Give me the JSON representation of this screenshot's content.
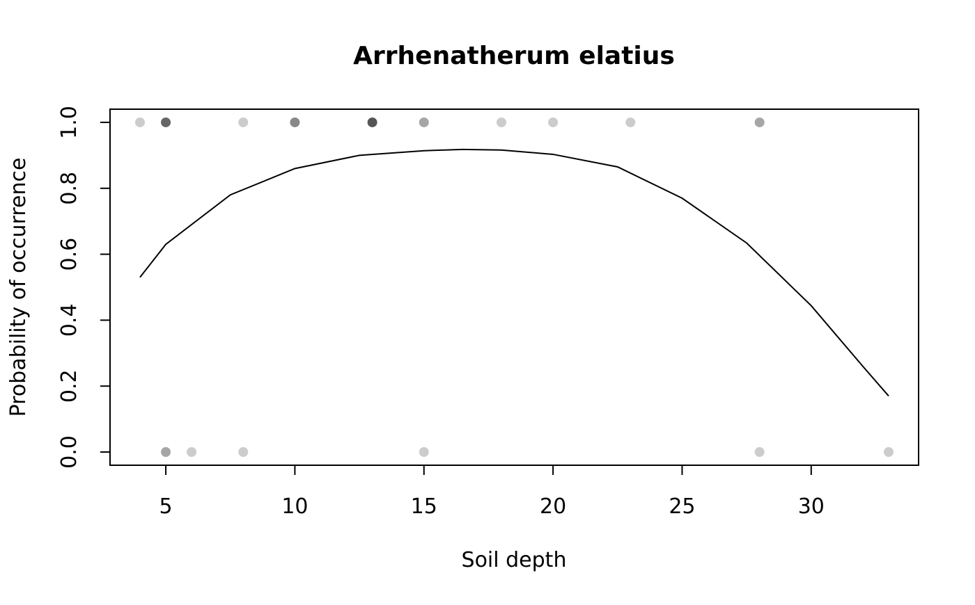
{
  "chart_data": {
    "type": "scatter",
    "title": "Arrhenatherum elatius",
    "xlabel": "Soil depth",
    "ylabel": "Probability of occurrence",
    "points": {
      "x": [
        4,
        5,
        8,
        10,
        13,
        15,
        18,
        20,
        23,
        28,
        5,
        6,
        8,
        15,
        28,
        33
      ],
      "y": [
        1,
        1,
        1,
        1,
        1,
        1,
        1,
        1,
        1,
        1,
        0,
        0,
        0,
        0,
        0,
        0
      ],
      "colors": [
        "#cccccc",
        "#666666",
        "#cccccc",
        "#888888",
        "#555555",
        "#a6a6a6",
        "#cccccc",
        "#cccccc",
        "#cccccc",
        "#a6a6a6",
        "#a6a6a6",
        "#cccccc",
        "#cccccc",
        "#cccccc",
        "#cccccc",
        "#cccccc"
      ]
    },
    "curve": {
      "color": "#000000",
      "x": [
        4,
        5,
        7.5,
        10,
        12.5,
        15,
        16.5,
        18,
        20,
        22.5,
        25,
        27.5,
        30,
        32,
        33
      ],
      "y": [
        0.53,
        0.63,
        0.78,
        0.86,
        0.9,
        0.914,
        0.918,
        0.916,
        0.903,
        0.865,
        0.77,
        0.634,
        0.444,
        0.26,
        0.17
      ]
    },
    "xlim": [
      2.84,
      34.16
    ],
    "xticks": [
      5,
      10,
      15,
      20,
      25,
      30
    ],
    "ylim": [
      -0.04,
      1.04
    ],
    "yticks": [
      {
        "value": 0,
        "label": "0.0"
      },
      0.2,
      0.4,
      0.6,
      0.8,
      {
        "value": 1,
        "label": "1.0"
      }
    ]
  }
}
